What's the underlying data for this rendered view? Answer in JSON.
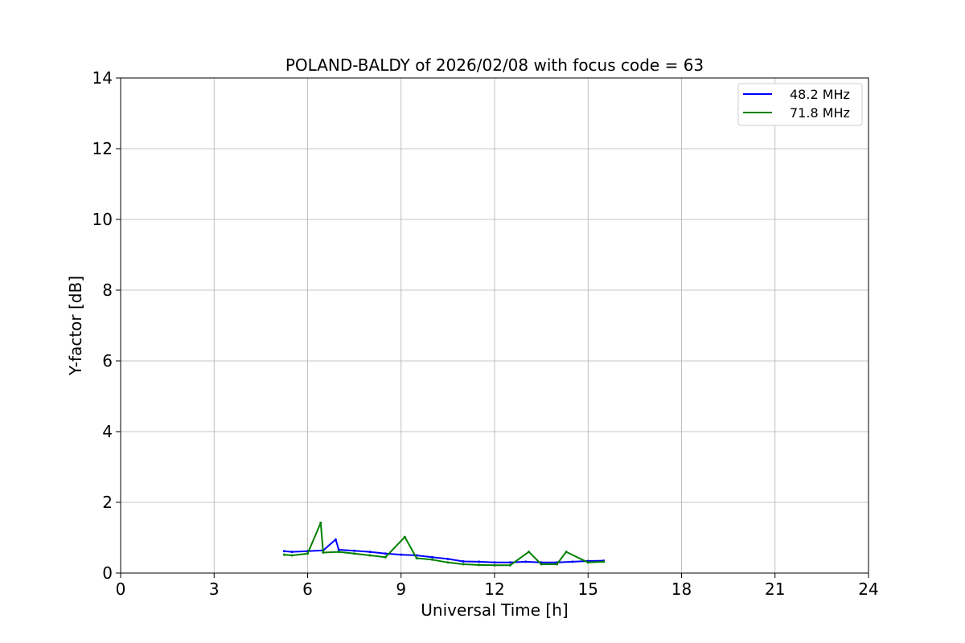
{
  "chart_data": {
    "type": "line",
    "title": "POLAND-BALDY of 2026/02/08 with focus code = 63",
    "xlabel": "Universal Time [h]",
    "ylabel": "Y-factor [dB]",
    "xlim": [
      0,
      24
    ],
    "ylim": [
      0,
      14
    ],
    "xticks": [
      0,
      3,
      6,
      9,
      12,
      15,
      18,
      21,
      24
    ],
    "yticks": [
      0,
      2,
      4,
      6,
      8,
      10,
      12,
      14
    ],
    "grid": true,
    "legend_position": "top-right",
    "series": [
      {
        "name": "48.2 MHz",
        "color": "#0000ff",
        "x": [
          5.25,
          5.5,
          6.0,
          6.5,
          6.9,
          7.0,
          7.5,
          8.0,
          8.5,
          9.0,
          9.5,
          10.0,
          10.5,
          11.0,
          11.5,
          12.0,
          12.5,
          13.0,
          13.5,
          14.0,
          14.5,
          15.0,
          15.5
        ],
        "y": [
          0.62,
          0.6,
          0.62,
          0.64,
          0.95,
          0.66,
          0.63,
          0.6,
          0.55,
          0.52,
          0.5,
          0.45,
          0.4,
          0.33,
          0.32,
          0.3,
          0.3,
          0.32,
          0.3,
          0.3,
          0.32,
          0.34,
          0.35
        ]
      },
      {
        "name": "71.8 MHz",
        "color": "#008000",
        "x": [
          5.25,
          5.5,
          6.0,
          6.42,
          6.5,
          7.0,
          7.5,
          8.0,
          8.5,
          9.12,
          9.5,
          10.0,
          10.5,
          11.0,
          11.5,
          12.0,
          12.5,
          13.1,
          13.5,
          14.0,
          14.3,
          15.0,
          15.5
        ],
        "y": [
          0.52,
          0.5,
          0.55,
          1.42,
          0.58,
          0.6,
          0.55,
          0.5,
          0.45,
          1.02,
          0.42,
          0.38,
          0.3,
          0.25,
          0.23,
          0.22,
          0.22,
          0.6,
          0.25,
          0.25,
          0.6,
          0.3,
          0.32
        ]
      }
    ]
  }
}
